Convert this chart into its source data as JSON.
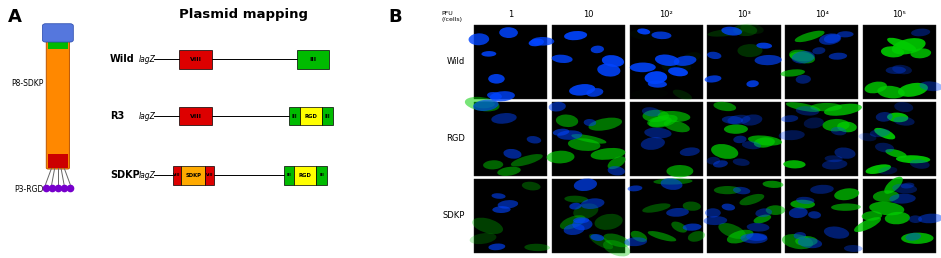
{
  "fig_width": 9.41,
  "fig_height": 2.58,
  "dpi": 100,
  "panel_A_label": "A",
  "panel_B_label": "B",
  "plasmid_title": "Plasmid mapping",
  "rows": [
    "Wild",
    "R3",
    "SDKP"
  ],
  "pfu_label": "PFU\n(/cells)",
  "col_labels": [
    "1",
    "10",
    "10²",
    "10³",
    "10⁴",
    "10⁵"
  ],
  "row_labels_B": [
    "Wild",
    "RGD",
    "SDKP"
  ],
  "colors": {
    "red": "#DD0000",
    "green": "#00AA00",
    "yellow": "#FFFF00",
    "orange": "#FF8C00",
    "blue_phage": "#4466CC",
    "dark_green": "#006600",
    "purple": "#7700CC",
    "bg": "#000000"
  },
  "phage_label_top": "P8-SDKP",
  "phage_label_bottom": "P3-RGD"
}
